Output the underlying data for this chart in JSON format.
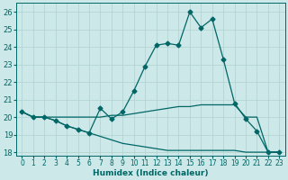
{
  "xlabel": "Humidex (Indice chaleur)",
  "bg_color": "#cce8e8",
  "grid_color": "#b0d0d0",
  "line_color": "#006666",
  "xlim": [
    -0.5,
    23.5
  ],
  "ylim": [
    17.8,
    26.5
  ],
  "yticks": [
    18,
    19,
    20,
    21,
    22,
    23,
    24,
    25,
    26
  ],
  "xticks": [
    0,
    1,
    2,
    3,
    4,
    5,
    6,
    7,
    8,
    9,
    10,
    11,
    12,
    13,
    14,
    15,
    16,
    17,
    18,
    19,
    20,
    21,
    22,
    23
  ],
  "curve1_x": [
    0,
    1,
    2,
    3,
    4,
    5,
    6,
    7,
    8,
    9,
    10,
    11,
    12,
    13,
    14,
    15,
    16,
    17,
    18,
    19,
    20,
    21,
    22,
    23
  ],
  "curve1_y": [
    20.3,
    20.0,
    20.0,
    19.8,
    19.5,
    19.3,
    19.1,
    20.5,
    19.9,
    20.3,
    21.5,
    22.9,
    24.1,
    24.2,
    24.1,
    26.0,
    25.1,
    25.6,
    23.3,
    20.8,
    19.9,
    19.2,
    18.0,
    18.0
  ],
  "curve2_x": [
    0,
    1,
    2,
    3,
    4,
    5,
    6,
    7,
    8,
    9,
    10,
    11,
    12,
    13,
    14,
    15,
    16,
    17,
    18,
    19,
    20,
    21,
    22,
    23
  ],
  "curve2_y": [
    20.3,
    20.0,
    20.0,
    20.0,
    20.0,
    20.0,
    20.0,
    20.0,
    20.1,
    20.1,
    20.2,
    20.3,
    20.4,
    20.5,
    20.6,
    20.6,
    20.7,
    20.7,
    20.7,
    20.7,
    20.0,
    20.0,
    18.0,
    18.0
  ],
  "curve3_x": [
    0,
    1,
    2,
    3,
    4,
    5,
    6,
    7,
    8,
    9,
    10,
    11,
    12,
    13,
    14,
    15,
    16,
    17,
    18,
    19,
    20,
    21,
    22,
    23
  ],
  "curve3_y": [
    20.3,
    20.0,
    20.0,
    19.8,
    19.5,
    19.3,
    19.1,
    18.9,
    18.7,
    18.5,
    18.4,
    18.3,
    18.2,
    18.1,
    18.1,
    18.1,
    18.1,
    18.1,
    18.1,
    18.1,
    18.0,
    18.0,
    18.0,
    18.0
  ]
}
